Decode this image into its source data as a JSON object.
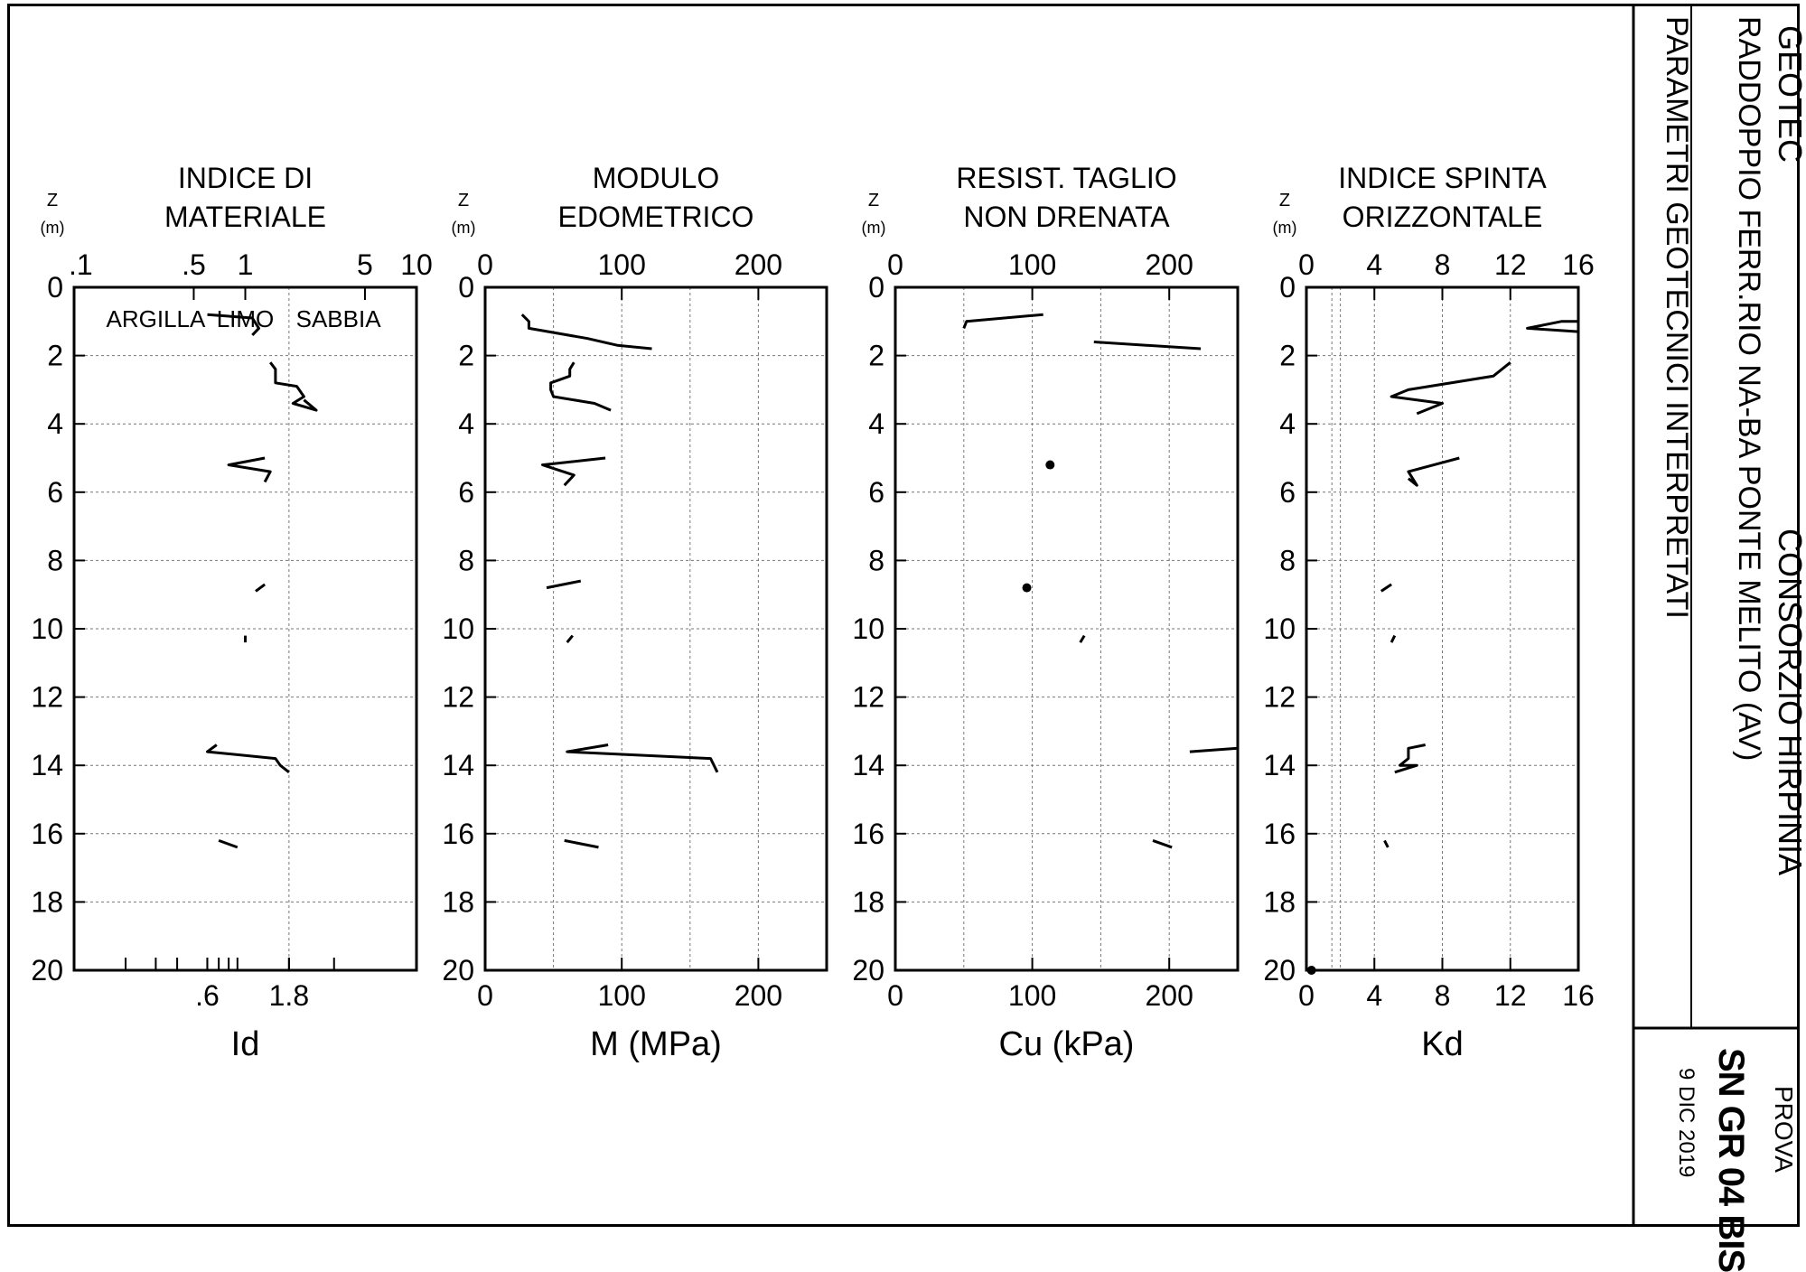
{
  "title_block": {
    "company": "GEOTEC",
    "client": "CONSORZIO HIRPINIA",
    "project": "RADDOPPIO FERR.RIO NA-BA   PONTE MELITO (AV)",
    "subtitle": "PARAMETRI GEOTECNICI INTERPRETATI",
    "test_label": "PROVA",
    "test_id": "SN GR 04 BIS",
    "date": "9 DIC 2019"
  },
  "z_label": "Z",
  "z_unit": "(m)",
  "depth_ticks": [
    "0",
    "2",
    "4",
    "6",
    "8",
    "10",
    "12",
    "14",
    "16",
    "18",
    "20"
  ],
  "chart_data": [
    {
      "type": "line",
      "title_line1": "INDICE DI",
      "title_line2": "MATERIALE",
      "xlabel": "Id",
      "ylabel": "Z (m)",
      "x_scale": "log",
      "xlim": [
        0.1,
        10
      ],
      "ylim": [
        20,
        0
      ],
      "top_ticks": [
        {
          "v": 0.1,
          "t": ".1"
        },
        {
          "v": 0.5,
          "t": ".5"
        },
        {
          "v": 1,
          "t": "1"
        },
        {
          "v": 5,
          "t": "5"
        },
        {
          "v": 10,
          "t": "10"
        }
      ],
      "bottom_ticks": [
        {
          "v": 0.6,
          "t": ".6"
        },
        {
          "v": 1.8,
          "t": "1.8"
        }
      ],
      "minor_ticks": [
        0.2,
        0.3,
        0.4,
        0.6,
        0.7,
        0.8,
        0.9,
        1.8,
        3.3
      ],
      "zone_labels": [
        {
          "t": "ARGILLA",
          "v": 0.3
        },
        {
          "t": "LIMO",
          "v": 1.0
        },
        {
          "t": "SABBIA",
          "v": 3.5
        }
      ],
      "grid_x": [
        1.8
      ],
      "grid": true,
      "series": [
        {
          "points": [
            [
              0.6,
              0.8
            ],
            [
              1.1,
              0.9
            ],
            [
              1.2,
              1.2
            ],
            [
              1.1,
              1.4
            ]
          ]
        },
        {
          "points": [
            [
              1.4,
              2.2
            ],
            [
              1.5,
              2.4
            ],
            [
              1.5,
              2.8
            ],
            [
              2.0,
              2.9
            ],
            [
              2.2,
              3.2
            ],
            [
              1.9,
              3.4
            ],
            [
              2.6,
              3.6
            ],
            [
              2.2,
              3.3
            ]
          ]
        },
        {
          "points": [
            [
              1.3,
              5.0
            ],
            [
              0.8,
              5.2
            ],
            [
              1.4,
              5.4
            ],
            [
              1.3,
              5.7
            ]
          ]
        },
        {
          "points": [
            [
              1.15,
              8.9
            ],
            [
              1.3,
              8.7
            ]
          ]
        },
        {
          "points": [
            [
              1.0,
              10.2
            ],
            [
              1.0,
              10.4
            ]
          ]
        },
        {
          "points": [
            [
              0.68,
              13.4
            ],
            [
              0.6,
              13.6
            ],
            [
              1.5,
              13.8
            ],
            [
              1.6,
              14.0
            ],
            [
              1.8,
              14.2
            ]
          ]
        },
        {
          "points": [
            [
              0.7,
              16.2
            ],
            [
              0.9,
              16.4
            ]
          ]
        }
      ],
      "dots": []
    },
    {
      "type": "line",
      "title_line1": "MODULO",
      "title_line2": "EDOMETRICO",
      "xlabel": "M (MPa)",
      "ylabel": "Z (m)",
      "x_scale": "linear",
      "xlim": [
        0,
        250
      ],
      "ylim": [
        20,
        0
      ],
      "top_ticks": [
        {
          "v": 0,
          "t": "0"
        },
        {
          "v": 100,
          "t": "100"
        },
        {
          "v": 200,
          "t": "200"
        }
      ],
      "bottom_ticks": [
        {
          "v": 0,
          "t": "0"
        },
        {
          "v": 100,
          "t": "100"
        },
        {
          "v": 200,
          "t": "200"
        }
      ],
      "grid_x": [
        50,
        100,
        150,
        200
      ],
      "grid": true,
      "series": [
        {
          "points": [
            [
              27,
              0.8
            ],
            [
              32,
              1.0
            ],
            [
              32,
              1.2
            ],
            [
              75,
              1.5
            ],
            [
              97,
              1.7
            ],
            [
              122,
              1.8
            ]
          ]
        },
        {
          "points": [
            [
              65,
              2.2
            ],
            [
              62,
              2.4
            ],
            [
              62,
              2.6
            ],
            [
              48,
              2.8
            ],
            [
              48,
              3.0
            ],
            [
              50,
              3.2
            ],
            [
              80,
              3.4
            ],
            [
              92,
              3.6
            ]
          ]
        },
        {
          "points": [
            [
              88,
              5.0
            ],
            [
              42,
              5.2
            ],
            [
              65,
              5.5
            ],
            [
              58,
              5.8
            ]
          ]
        },
        {
          "points": [
            [
              45,
              8.8
            ],
            [
              70,
              8.6
            ]
          ]
        },
        {
          "points": [
            [
              60,
              10.4
            ],
            [
              64,
              10.2
            ]
          ]
        },
        {
          "points": [
            [
              90,
              13.4
            ],
            [
              60,
              13.6
            ],
            [
              165,
              13.8
            ],
            [
              170,
              14.2
            ]
          ]
        },
        {
          "points": [
            [
              58,
              16.2
            ],
            [
              83,
              16.4
            ]
          ]
        }
      ],
      "dots": []
    },
    {
      "type": "line",
      "title_line1": "RESIST. TAGLIO",
      "title_line2": "NON DRENATA",
      "xlabel": "Cu (kPa)",
      "ylabel": "Z (m)",
      "x_scale": "linear",
      "xlim": [
        0,
        250
      ],
      "ylim": [
        20,
        0
      ],
      "top_ticks": [
        {
          "v": 0,
          "t": "0"
        },
        {
          "v": 100,
          "t": "100"
        },
        {
          "v": 200,
          "t": "200"
        }
      ],
      "bottom_ticks": [
        {
          "v": 0,
          "t": "0"
        },
        {
          "v": 100,
          "t": "100"
        },
        {
          "v": 200,
          "t": "200"
        }
      ],
      "grid_x": [
        50,
        100,
        150,
        200
      ],
      "grid": true,
      "series": [
        {
          "points": [
            [
              108,
              0.8
            ],
            [
              52,
              1.0
            ],
            [
              50,
              1.2
            ]
          ]
        },
        {
          "points": [
            [
              145,
              1.6
            ],
            [
              223,
              1.8
            ]
          ]
        },
        {
          "points": [
            [
              135,
              10.4
            ],
            [
              138,
              10.2
            ]
          ]
        },
        {
          "points": [
            [
              215,
              13.6
            ],
            [
              250,
              13.5
            ]
          ]
        },
        {
          "points": [
            [
              188,
              16.2
            ],
            [
              202,
              16.4
            ]
          ]
        }
      ],
      "dots": [
        [
          113,
          5.2
        ],
        [
          96,
          8.8
        ]
      ]
    },
    {
      "type": "line",
      "title_line1": "INDICE SPINTA",
      "title_line2": "ORIZZONTALE",
      "xlabel": "Kd",
      "ylabel": "Z (m)",
      "x_scale": "linear",
      "xlim": [
        0,
        16
      ],
      "ylim": [
        20,
        0
      ],
      "top_ticks": [
        {
          "v": 0,
          "t": "0"
        },
        {
          "v": 4,
          "t": "4"
        },
        {
          "v": 8,
          "t": "8"
        },
        {
          "v": 12,
          "t": "12"
        },
        {
          "v": 16,
          "t": "16"
        }
      ],
      "bottom_ticks": [
        {
          "v": 0,
          "t": "0"
        },
        {
          "v": 4,
          "t": "4"
        },
        {
          "v": 8,
          "t": "8"
        },
        {
          "v": 12,
          "t": "12"
        },
        {
          "v": 16,
          "t": "16"
        }
      ],
      "grid_x": [
        1.5,
        2,
        4,
        8,
        12
      ],
      "grid": true,
      "series": [
        {
          "points": [
            [
              16,
              1.0
            ],
            [
              15,
              1.0
            ],
            [
              13,
              1.2
            ],
            [
              16,
              1.3
            ]
          ]
        },
        {
          "points": [
            [
              12,
              2.2
            ],
            [
              11,
              2.6
            ],
            [
              6,
              3.0
            ],
            [
              5,
              3.2
            ],
            [
              8,
              3.4
            ],
            [
              6.5,
              3.7
            ]
          ]
        },
        {
          "points": [
            [
              9,
              5.0
            ],
            [
              6,
              5.4
            ],
            [
              6.5,
              5.8
            ],
            [
              6,
              5.6
            ]
          ]
        },
        {
          "points": [
            [
              4.4,
              8.9
            ],
            [
              5.0,
              8.7
            ]
          ]
        },
        {
          "points": [
            [
              5.0,
              10.4
            ],
            [
              5.2,
              10.2
            ]
          ]
        },
        {
          "points": [
            [
              7,
              13.4
            ],
            [
              6,
              13.5
            ],
            [
              6,
              13.8
            ],
            [
              5.5,
              14.0
            ],
            [
              6.5,
              14.0
            ],
            [
              5.2,
              14.2
            ]
          ]
        },
        {
          "points": [
            [
              4.6,
              16.2
            ],
            [
              4.8,
              16.4
            ]
          ]
        }
      ],
      "dots": [
        [
          0.3,
          20.0
        ]
      ]
    }
  ]
}
